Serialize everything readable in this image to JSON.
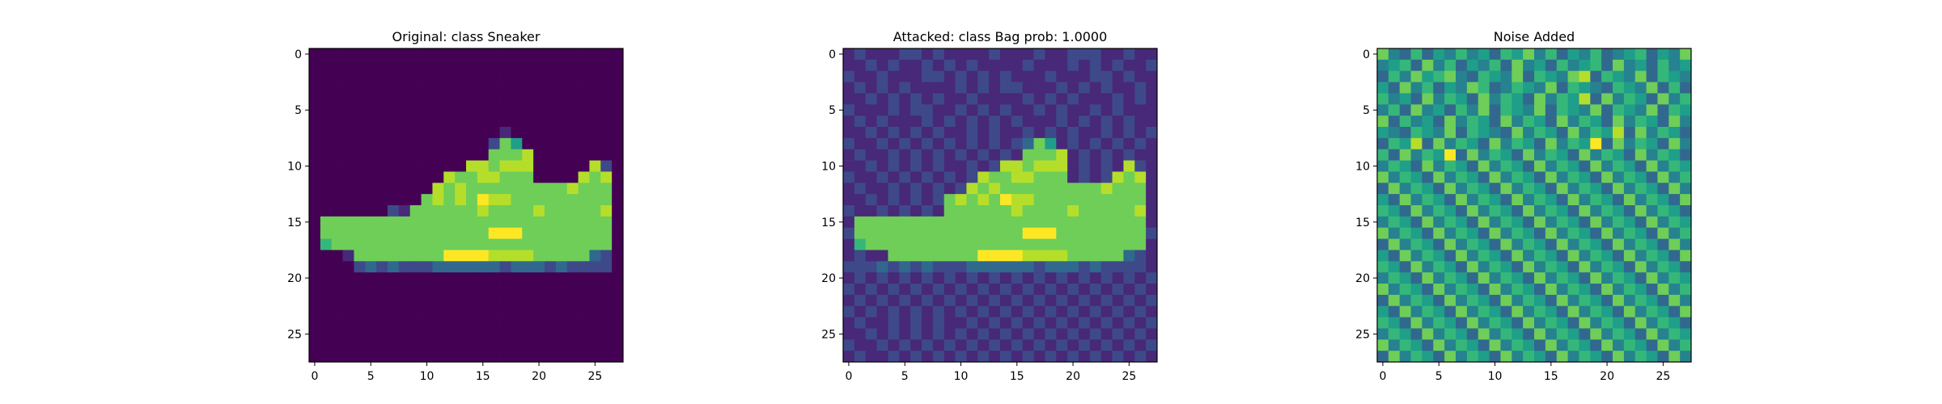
{
  "chart_data": [
    {
      "type": "heatmap",
      "title": "Original: class Sneaker",
      "colormap": "viridis",
      "xlabel": "",
      "ylabel": "",
      "xlim": [
        -0.5,
        27.5
      ],
      "ylim": [
        27.5,
        -0.5
      ],
      "x_ticks": [
        0,
        5,
        10,
        15,
        20,
        25
      ],
      "y_ticks": [
        0,
        5,
        10,
        15,
        20,
        25
      ],
      "x_tick_labels": [
        "0",
        "5",
        "10",
        "15",
        "20",
        "25"
      ],
      "y_tick_labels": [
        "0",
        "5",
        "10",
        "15",
        "20",
        "25"
      ],
      "grid": [
        "0000000000000000000000000000",
        "0000000000000000000000000000",
        "0000000000000000000000000000",
        "0000000000000000000000000000",
        "0000000000000000000000000000",
        "0000000000000000000000000000",
        "0000000000000000000000000000",
        "0000000000000000010000000000",
        "0000000000000000275000000000",
        "0000000000000000777800000000",
        "0000000000000088788800000820",
        "0000000000008778877700008780",
        "0000000000087877777777787770",
        "0000000000787879887777777770",
        "0000000217777778777787777780",
        "0777777777777777777777777770",
        "0777777777777777999777777770",
        "0677777777777777777777777770",
        "0001777777779999888877777320",
        "0000232322233333323332322220",
        "0000000000000000000000000000",
        "0000000000000000000000000000",
        "0000000000000000000000000000",
        "0000000000000000000000000000",
        "0000000000000000000000000000",
        "0000000000000000000000000000",
        "0000000000000000000000000000",
        "0000000000000000000000000000"
      ],
      "value_scale": "0-9 digit levels (0=min, 9=max)"
    },
    {
      "type": "heatmap",
      "title": "Attacked: class Bag prob: 1.0000",
      "colormap": "viridis",
      "xlabel": "",
      "ylabel": "",
      "xlim": [
        -0.5,
        27.5
      ],
      "ylim": [
        27.5,
        -0.5
      ],
      "x_ticks": [
        0,
        5,
        10,
        15,
        20,
        25
      ],
      "y_ticks": [
        0,
        5,
        10,
        15,
        20,
        25
      ],
      "x_tick_labels": [
        "0",
        "5",
        "10",
        "15",
        "20",
        "25"
      ],
      "y_tick_labels": [
        "0",
        "5",
        "10",
        "15",
        "20",
        "25"
      ],
      "grid": [
        "1211122121111211121122211211",
        "1121211212121111211121212112",
        "2112111221212121112111221211",
        "1212121111212122111212121121",
        "1121212121121111212121112121",
        "2111212211212121121211212111",
        "1212111212121212111212121211",
        "1121212121121211212121121212",
        "2112121212121212375121212121",
        "1211212121212121777812121211",
        "1121212121121288788812121821",
        "2112121212128778877712128781",
        "1211212121287877777777787771",
        "1121212127878798877777777771",
        "2112121217777778777787777781",
        "1777777777777777777777777771",
        "2777777777777777999777777772",
        "1677777777777777777777777771",
        "1211777777779999888877777321",
        "2223232322233333323332322221",
        "1212121212121212121212121212",
        "2121212121212121212121212121",
        "1212121212121212121212121212",
        "2121212121212121212121212121",
        "1211212121121212121212121212",
        "1121212121212121212121212121",
        "2112121212121212121212121212",
        "1211212121212121212121212121"
      ],
      "value_scale": "0-9 digit levels (0=min, 9=max)"
    },
    {
      "type": "heatmap",
      "title": "Noise Added",
      "colormap": "viridis",
      "xlabel": "",
      "ylabel": "",
      "xlim": [
        -0.5,
        27.5
      ],
      "ylim": [
        27.5,
        -0.5
      ],
      "x_ticks": [
        0,
        5,
        10,
        15,
        20,
        25
      ],
      "y_ticks": [
        0,
        5,
        10,
        15,
        20,
        25
      ],
      "x_tick_labels": [
        "0",
        "5",
        "10",
        "15",
        "20",
        "25"
      ],
      "y_tick_labels": [
        "0",
        "5",
        "10",
        "15",
        "20",
        "25"
      ],
      "grid": [
        "7436354645365746354634563547",
        "4563746354637453645637453645",
        "3647567436547365478365473654",
        "5374635476346547365436547363",
        "6453746537465374658374653746",
        "4637453647365473654736547365",
        "7364537465374653746537465374",
        "5436547365437465374658374653",
        "3658374653746537465937465374",
        "6374659374653746537465374653",
        "4653746537465374653746537465",
        "7465374653746537465374653746",
        "3746537465374653746537465374",
        "5374653746537465374653746537",
        "6537465374653746537465374653",
        "4653746537465374653746537465",
        "7465374653746537465374653746",
        "3746537465374653746537465374",
        "5374653746537465374653746537",
        "6537465374653746537465374653",
        "4653746537465374653746537465",
        "7465374653746537465374653746",
        "3746537465374653746537465374",
        "5374653746537465374653746537",
        "6537465374653746537465374653",
        "4653746537465374653746537465",
        "7465374653746537465374653746",
        "3746537465374653746537465374"
      ],
      "value_scale": "0-9 digit levels (0=min, 9=max)"
    }
  ]
}
